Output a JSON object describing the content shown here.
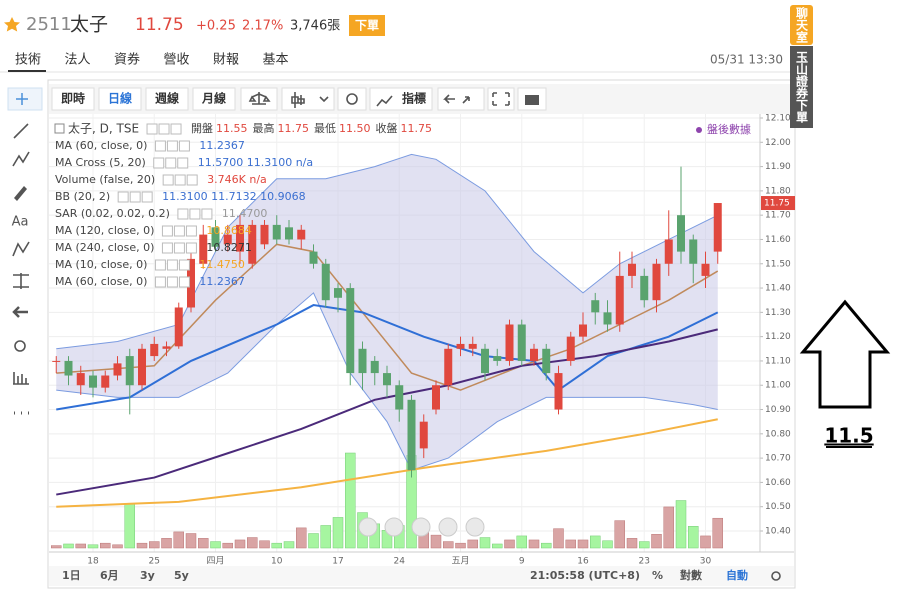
{
  "header": {
    "code": "2511",
    "name": "太子",
    "price": "11.75",
    "change": "+0.25",
    "change_pct": "2.17%",
    "volume": "3,746張",
    "order_button": "下單",
    "datetime": "05/31 13:30"
  },
  "tabs": [
    "技術",
    "法人",
    "資券",
    "營收",
    "財報",
    "基本"
  ],
  "toolbar": {
    "realtime": "即時",
    "daily": "日線",
    "weekly": "週線",
    "monthly": "月線",
    "indicators": "指標"
  },
  "tools": {
    "text": "Aa"
  },
  "sidebar": {
    "chat": "聊天室",
    "broker": "玉山證券下單"
  },
  "legend": {
    "symbol": "太子, D, TSE",
    "ohlc": [
      {
        "label": "開盤",
        "value": "11.55"
      },
      {
        "label": "最高",
        "value": "11.75"
      },
      {
        "label": "最低",
        "value": "11.50"
      },
      {
        "label": "收盤",
        "value": "11.75"
      }
    ],
    "after_hours": "盤後數據",
    "rows": [
      {
        "name": "MA (60, close, 0)",
        "value": "11.2367",
        "color": "#3b6fd0"
      },
      {
        "name": "MA Cross (5, 20)",
        "value": "11.5700 11.3100 n/a",
        "color": "#3b6fd0"
      },
      {
        "name": "Volume (false, 20)",
        "value": "3.746K n/a",
        "color": "#e0483e"
      },
      {
        "name": "BB (20, 2)",
        "value": "11.3100 11.7132 10.9068",
        "color": "#3b6fd0"
      },
      {
        "name": "SAR (0.02, 0.02, 0.2)",
        "value": "11.4700",
        "color": "#999999"
      },
      {
        "name": "MA (120, close, 0)",
        "value": "10.8684",
        "color": "#f5a623"
      },
      {
        "name": "MA (240, close, 0)",
        "value": "10.8271",
        "color": "#333333"
      },
      {
        "name": "MA (10, close, 0)",
        "value": "11.4750",
        "color": "#f5a623"
      },
      {
        "name": "MA (60, close, 0)",
        "value": "11.2367",
        "color": "#3b6fd0"
      }
    ]
  },
  "bottom_bar": {
    "ranges": [
      "1日",
      "6月",
      "3y",
      "5y"
    ],
    "clock": "21:05:58 (UTC+8)",
    "percent": "%",
    "log": "對數",
    "auto": "自動"
  },
  "annotation": {
    "text": "11.5"
  },
  "chart_data": {
    "type": "candlestick",
    "categories": [
      null,
      null,
      null,
      "18",
      null,
      null,
      null,
      null,
      "25",
      null,
      null,
      null,
      null,
      "四月",
      null,
      null,
      null,
      null,
      "10",
      null,
      null,
      null,
      null,
      "17",
      null,
      null,
      null,
      null,
      "24",
      null,
      null,
      null,
      null,
      "五月",
      null,
      null,
      null,
      null,
      "9",
      null,
      null,
      null,
      null,
      "16",
      null,
      null,
      null,
      null,
      "23",
      null,
      null,
      null,
      null,
      "30",
      null
    ],
    "open": [
      11.1,
      11.1,
      11.0,
      11.04,
      10.99,
      11.04,
      11.12,
      11.0,
      11.12,
      11.15,
      11.16,
      11.32,
      11.5,
      11.65,
      11.58,
      11.55,
      11.5,
      11.58,
      11.66,
      11.65,
      11.6,
      11.55,
      11.5,
      11.4,
      11.4,
      11.15,
      11.1,
      11.05,
      11.0,
      10.94,
      10.74,
      10.9,
      11.0,
      11.15,
      11.15,
      11.15,
      11.12,
      11.1,
      11.25,
      11.1,
      11.15,
      10.9,
      11.1,
      11.2,
      11.35,
      11.3,
      11.25,
      11.45,
      11.45,
      11.35,
      11.5,
      11.7,
      11.6,
      11.45,
      11.55
    ],
    "high": [
      11.12,
      11.12,
      11.08,
      11.06,
      11.06,
      11.12,
      11.15,
      11.17,
      11.2,
      11.18,
      11.34,
      11.55,
      11.66,
      11.68,
      11.66,
      11.7,
      11.68,
      11.68,
      11.7,
      11.68,
      11.66,
      11.58,
      11.52,
      11.42,
      11.42,
      11.18,
      11.12,
      11.08,
      11.02,
      10.96,
      10.88,
      11.02,
      11.17,
      11.2,
      11.2,
      11.17,
      11.15,
      11.27,
      11.27,
      11.17,
      11.17,
      11.08,
      11.22,
      11.3,
      11.38,
      11.35,
      11.55,
      11.55,
      11.48,
      11.52,
      11.72,
      11.9,
      11.62,
      11.55,
      11.75
    ],
    "low": [
      11.05,
      11.0,
      10.96,
      10.95,
      10.97,
      11.02,
      10.88,
      10.98,
      11.1,
      11.12,
      11.15,
      11.3,
      11.48,
      11.55,
      11.55,
      11.5,
      11.48,
      11.56,
      11.58,
      11.58,
      11.56,
      11.48,
      11.32,
      11.3,
      11.0,
      10.98,
      11.0,
      10.95,
      10.85,
      10.62,
      10.7,
      10.88,
      10.98,
      11.12,
      11.12,
      11.02,
      11.08,
      11.08,
      11.08,
      11.08,
      11.02,
      10.88,
      11.08,
      11.18,
      11.25,
      11.22,
      11.22,
      11.4,
      11.32,
      11.3,
      11.45,
      11.5,
      11.42,
      11.4,
      11.5
    ],
    "close": [
      11.1,
      11.04,
      11.05,
      10.99,
      11.04,
      11.09,
      11.0,
      11.15,
      11.17,
      11.16,
      11.32,
      11.52,
      11.62,
      11.57,
      11.62,
      11.66,
      11.66,
      11.66,
      11.6,
      11.6,
      11.64,
      11.5,
      11.35,
      11.36,
      11.05,
      11.05,
      11.05,
      11.0,
      10.9,
      10.65,
      10.85,
      11.0,
      11.15,
      11.17,
      11.17,
      11.05,
      11.1,
      11.25,
      11.1,
      11.15,
      11.05,
      11.05,
      11.2,
      11.25,
      11.3,
      11.25,
      11.45,
      11.5,
      11.35,
      11.5,
      11.6,
      11.55,
      11.5,
      11.5,
      11.75
    ],
    "volume": [
      0.3,
      0.5,
      0.5,
      0.4,
      0.6,
      0.4,
      5.5,
      0.6,
      0.8,
      1.2,
      2.0,
      1.8,
      1.2,
      0.8,
      0.6,
      1.0,
      1.3,
      0.9,
      0.6,
      0.8,
      2.5,
      1.8,
      2.8,
      3.8,
      11.8,
      4.4,
      3.0,
      2.2,
      2.8,
      11.5,
      3.0,
      1.6,
      0.8,
      0.6,
      1.0,
      1.3,
      0.5,
      1.0,
      1.5,
      1.0,
      0.6,
      2.4,
      1.0,
      1.0,
      1.5,
      0.9,
      3.4,
      1.2,
      0.8,
      1.7,
      5.1,
      5.9,
      2.7,
      1.5,
      3.7
    ],
    "up_color": "#e0483e",
    "down_color": "#5aa36e",
    "volume_up_color": "#d9a4a4",
    "volume_down_color": "#a6f5a0",
    "band": {
      "color": "#7b9be0",
      "fill": "#c8c8e8",
      "upper": {
        "x": [
          0,
          5,
          10,
          14,
          18,
          22,
          26,
          29,
          31,
          35,
          39,
          43,
          46,
          50,
          54
        ],
        "values": [
          11.15,
          11.18,
          11.25,
          11.65,
          11.85,
          11.85,
          11.9,
          11.95,
          11.93,
          11.8,
          11.55,
          11.38,
          11.5,
          11.6,
          11.7
        ]
      },
      "lower": {
        "x": [
          0,
          5,
          10,
          14,
          18,
          21,
          24,
          27,
          29,
          32,
          36,
          40,
          44,
          48,
          52,
          54
        ],
        "values": [
          10.98,
          10.95,
          10.95,
          11.05,
          11.25,
          11.38,
          11.05,
          10.85,
          10.65,
          10.7,
          10.85,
          10.95,
          10.95,
          10.95,
          10.92,
          10.9
        ]
      }
    },
    "lines": [
      {
        "color": "#c08a5c",
        "width": 1.5,
        "x": [
          0,
          8,
          13,
          18,
          21,
          25,
          29,
          33,
          38,
          42,
          46,
          50,
          54
        ],
        "values": [
          11.05,
          11.08,
          11.35,
          11.58,
          11.55,
          11.3,
          11.05,
          10.98,
          11.08,
          11.15,
          11.25,
          11.35,
          11.47
        ]
      },
      {
        "color": "#2f6fd6",
        "width": 2,
        "x": [
          0,
          6,
          11,
          18,
          21,
          25,
          30,
          35,
          39,
          41,
          45,
          50,
          54
        ],
        "values": [
          10.9,
          10.95,
          11.1,
          11.25,
          11.33,
          11.3,
          11.2,
          11.12,
          11.1,
          10.98,
          11.12,
          11.2,
          11.3
        ]
      },
      {
        "color": "#4b2a7a",
        "width": 2,
        "x": [
          0,
          8,
          14,
          20,
          26,
          32,
          38,
          44,
          50,
          54
        ],
        "values": [
          10.55,
          10.62,
          10.72,
          10.82,
          10.94,
          11.0,
          11.08,
          11.12,
          11.18,
          11.23
        ]
      },
      {
        "color": "#f5b342",
        "width": 2,
        "x": [
          0,
          10,
          20,
          30,
          40,
          48,
          54
        ],
        "values": [
          10.5,
          10.52,
          10.58,
          10.66,
          10.73,
          10.8,
          10.86
        ]
      }
    ],
    "ylim": [
      10.33,
      12.1
    ],
    "yticks": [
      {
        "value": 12.1,
        "label": "12.10"
      },
      {
        "value": 12.0,
        "label": "12.00"
      },
      {
        "value": 11.9,
        "label": "11.90"
      },
      {
        "value": 11.8,
        "label": "11.80"
      },
      {
        "value": 11.7,
        "label": "11.70"
      },
      {
        "value": 11.6,
        "label": "11.60"
      },
      {
        "value": 11.5,
        "label": "11.50"
      },
      {
        "value": 11.4,
        "label": "11.40"
      },
      {
        "value": 11.3,
        "label": "11.30"
      },
      {
        "value": 11.2,
        "label": "11.20"
      },
      {
        "value": 11.1,
        "label": "11.10"
      },
      {
        "value": 11.0,
        "label": "11.00"
      },
      {
        "value": 10.9,
        "label": "10.90"
      },
      {
        "value": 10.8,
        "label": "10.80"
      },
      {
        "value": 10.7,
        "label": "10.70"
      },
      {
        "value": 10.6,
        "label": "10.60"
      },
      {
        "value": 10.5,
        "label": "10.50"
      },
      {
        "value": 10.4,
        "label": "10.40"
      }
    ],
    "grid": true
  }
}
